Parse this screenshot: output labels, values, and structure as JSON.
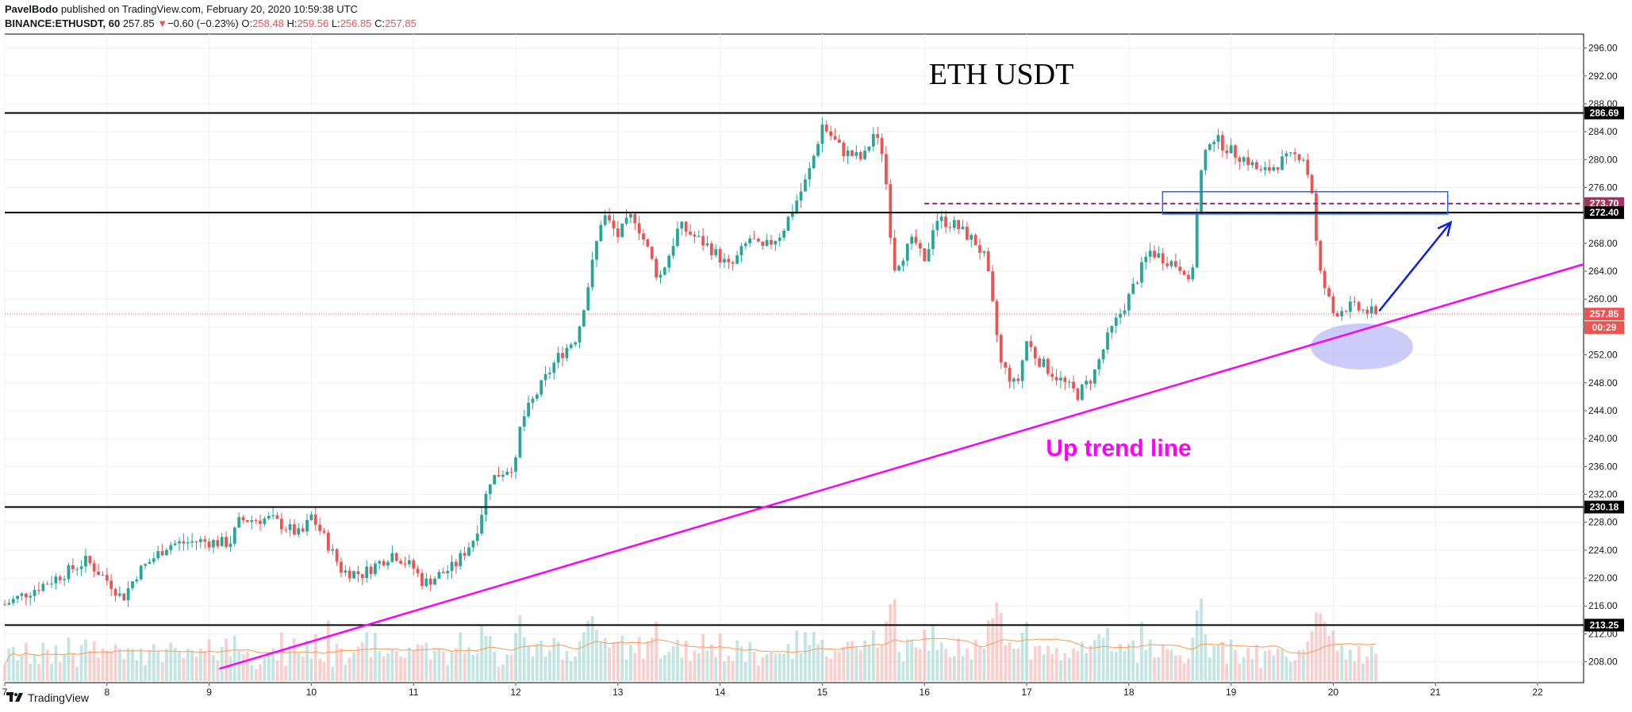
{
  "header": {
    "author": "PavelBodo",
    "published_text": "published on TradingView.com, February 20, 2020 10:59:38 UTC",
    "symbol": "BINANCE:ETHUSDT, 60",
    "last_price": "257.85",
    "change_arrow": "▼",
    "change": "−0.60 (−0.23%)",
    "o_label": "O:",
    "o_value": "258.48",
    "h_label": "H:",
    "h_value": "259.56",
    "l_label": "L:",
    "l_value": "256.85",
    "c_label": "C:",
    "c_value": "257.85"
  },
  "footer": {
    "brand": "TradingView"
  },
  "colors": {
    "up": "#26a69a",
    "down": "#ef5350",
    "trendline": "#ff00ff",
    "annotation_arrow": "#0d1fdc",
    "level_line": "#000000",
    "dashed_level": "#8b2566",
    "box": "#2962ff",
    "ellipse": "#8c8ff0"
  },
  "chart_data": {
    "type": "candlestick",
    "title": "ETH USDT",
    "annotation": "Up trend line",
    "countdown": "00:29",
    "ylim": [
      205,
      298
    ],
    "y_ticks": [
      "208.00",
      "212.00",
      "216.00",
      "220.00",
      "224.00",
      "228.00",
      "232.00",
      "236.00",
      "240.00",
      "244.00",
      "248.00",
      "252.00",
      "256.00",
      "260.00",
      "264.00",
      "268.00",
      "272.00",
      "276.00",
      "280.00",
      "284.00",
      "288.00",
      "292.00",
      "296.00"
    ],
    "x_ticks": [
      {
        "label": "7",
        "day": 7
      },
      {
        "label": "8",
        "day": 8
      },
      {
        "label": "9",
        "day": 9
      },
      {
        "label": "10",
        "day": 10
      },
      {
        "label": "11",
        "day": 11
      },
      {
        "label": "12",
        "day": 12
      },
      {
        "label": "13",
        "day": 13
      },
      {
        "label": "14",
        "day": 14
      },
      {
        "label": "15",
        "day": 15
      },
      {
        "label": "16",
        "day": 16
      },
      {
        "label": "17",
        "day": 17
      },
      {
        "label": "18",
        "day": 18
      },
      {
        "label": "19",
        "day": 19
      },
      {
        "label": "20",
        "day": 20
      },
      {
        "label": "21",
        "day": 21
      },
      {
        "label": "22",
        "day": 22
      }
    ],
    "xlim_days": [
      7,
      22.45
    ],
    "horizontal_levels": [
      286.69,
      272.4,
      230.18,
      213.25
    ],
    "dashed_level": 273.7,
    "current_price": 257.85,
    "level_labels": [
      "286.69",
      "273.70",
      "272.40",
      "257.85",
      "230.18",
      "213.25"
    ],
    "trend_line": {
      "from": {
        "day": 9.1,
        "price": 207.0
      },
      "to": {
        "day": 22.45,
        "price": 265.0
      }
    },
    "resistance_box": {
      "day_from": 18.33,
      "day_to": 21.12,
      "price_low": 272.2,
      "price_high": 275.4
    },
    "arrow": {
      "from": {
        "day": 20.45,
        "price": 258.3
      },
      "to": {
        "day": 21.15,
        "price": 271.0
      }
    },
    "ellipse": {
      "center_day": 20.28,
      "center_price": 253.2,
      "radius_days": 0.5,
      "radius_price": 3.3
    },
    "price_path": [
      [
        7.0,
        216.2
      ],
      [
        7.3,
        218.5
      ],
      [
        7.6,
        220.8
      ],
      [
        7.8,
        222.5
      ],
      [
        8.05,
        219.0
      ],
      [
        8.15,
        217.0
      ],
      [
        8.3,
        220.8
      ],
      [
        8.6,
        224.8
      ],
      [
        8.9,
        225.3
      ],
      [
        9.2,
        225.0
      ],
      [
        9.3,
        228.3
      ],
      [
        9.6,
        228.5
      ],
      [
        9.9,
        226.1
      ],
      [
        10.0,
        228.9
      ],
      [
        10.15,
        225.2
      ],
      [
        10.3,
        221.0
      ],
      [
        10.5,
        220.6
      ],
      [
        10.8,
        223.6
      ],
      [
        11.0,
        221.4
      ],
      [
        11.1,
        219.2
      ],
      [
        11.4,
        221.7
      ],
      [
        11.6,
        225.9
      ],
      [
        11.75,
        234.1
      ],
      [
        12.0,
        236.5
      ],
      [
        12.05,
        242.3
      ],
      [
        12.2,
        246.3
      ],
      [
        12.4,
        251.4
      ],
      [
        12.6,
        254.7
      ],
      [
        12.7,
        261.4
      ],
      [
        12.85,
        272.3
      ],
      [
        13.0,
        269.1
      ],
      [
        13.15,
        272.2
      ],
      [
        13.3,
        266.8
      ],
      [
        13.4,
        262.8
      ],
      [
        13.5,
        266.4
      ],
      [
        13.6,
        270.5
      ],
      [
        13.9,
        267.4
      ],
      [
        14.1,
        264.4
      ],
      [
        14.3,
        268.9
      ],
      [
        14.4,
        266.9
      ],
      [
        14.6,
        269.5
      ],
      [
        14.85,
        277.3
      ],
      [
        14.9,
        279.6
      ],
      [
        15.0,
        285.0
      ],
      [
        15.2,
        281.2
      ],
      [
        15.4,
        280.0
      ],
      [
        15.5,
        283.7
      ],
      [
        15.6,
        280.8
      ],
      [
        15.65,
        272.3
      ],
      [
        15.7,
        264.5
      ],
      [
        15.9,
        268.6
      ],
      [
        16.0,
        264.8
      ],
      [
        16.1,
        271.6
      ],
      [
        16.3,
        270.6
      ],
      [
        16.5,
        268.1
      ],
      [
        16.6,
        265.6
      ],
      [
        16.75,
        250.7
      ],
      [
        16.9,
        247.3
      ],
      [
        17.0,
        254.0
      ],
      [
        17.1,
        251.5
      ],
      [
        17.25,
        249.4
      ],
      [
        17.5,
        246.3
      ],
      [
        17.65,
        249.0
      ],
      [
        17.8,
        254.7
      ],
      [
        18.0,
        260.3
      ],
      [
        18.2,
        266.9
      ],
      [
        18.4,
        265.4
      ],
      [
        18.55,
        264.3
      ],
      [
        18.6,
        260.8
      ],
      [
        18.7,
        277.6
      ],
      [
        18.8,
        283.5
      ],
      [
        19.0,
        281.2
      ],
      [
        19.15,
        280.0
      ],
      [
        19.3,
        278.0
      ],
      [
        19.5,
        279.8
      ],
      [
        19.7,
        280.9
      ],
      [
        19.8,
        275.0
      ],
      [
        19.85,
        264.6
      ],
      [
        20.0,
        258.0
      ],
      [
        20.15,
        259.0
      ],
      [
        20.3,
        258.3
      ],
      [
        20.45,
        257.85
      ]
    ]
  }
}
